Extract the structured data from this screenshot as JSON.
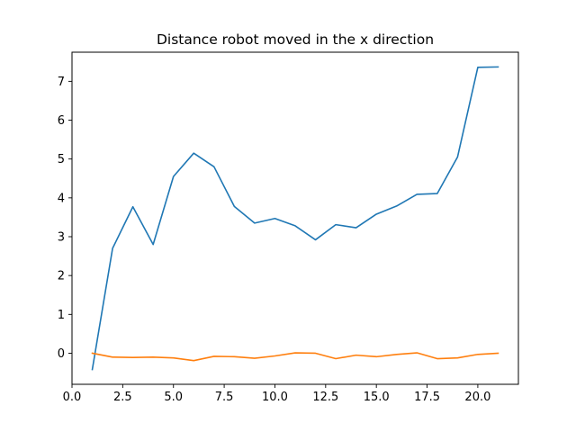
{
  "chart_data": {
    "type": "line",
    "title": "Distance robot moved in the x direction",
    "xlabel": "",
    "ylabel": "",
    "xlim": [
      0.0,
      22.0
    ],
    "ylim": [
      -0.8,
      7.75
    ],
    "xticks": [
      0.0,
      2.5,
      5.0,
      7.5,
      10.0,
      12.5,
      15.0,
      17.5,
      20.0
    ],
    "xtick_labels": [
      "0.0",
      "2.5",
      "5.0",
      "7.5",
      "10.0",
      "12.5",
      "15.0",
      "17.5",
      "20.0"
    ],
    "yticks": [
      0,
      1,
      2,
      3,
      4,
      5,
      6,
      7
    ],
    "ytick_labels": [
      "0",
      "1",
      "2",
      "3",
      "4",
      "5",
      "6",
      "7"
    ],
    "grid": false,
    "legend": "none",
    "x": [
      1,
      2,
      3,
      4,
      5,
      6,
      7,
      8,
      9,
      10,
      11,
      12,
      13,
      14,
      15,
      16,
      17,
      18,
      19,
      20,
      21
    ],
    "series": [
      {
        "color": "#1f77b4",
        "values": [
          -0.42,
          2.7,
          3.77,
          2.8,
          4.55,
          5.15,
          4.8,
          3.78,
          3.35,
          3.47,
          3.28,
          2.92,
          3.31,
          3.23,
          3.58,
          3.79,
          4.09,
          4.11,
          5.05,
          7.36,
          7.37
        ]
      },
      {
        "color": "#ff7f0e",
        "values": [
          0.0,
          -0.1,
          -0.11,
          -0.1,
          -0.12,
          -0.19,
          -0.08,
          -0.09,
          -0.13,
          -0.07,
          0.01,
          0.0,
          -0.14,
          -0.05,
          -0.09,
          -0.03,
          0.01,
          -0.14,
          -0.12,
          -0.03,
          0.0
        ]
      }
    ]
  }
}
